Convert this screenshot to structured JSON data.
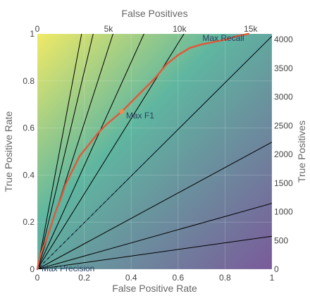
{
  "chart_data": {
    "type": "line",
    "axes": {
      "bottom_label": "False Positive Rate",
      "top_label": "False Positives",
      "left_label": "True Positive Rate",
      "right_label": "True Positives",
      "bottom_range": [
        0,
        1
      ],
      "left_range": [
        0,
        1
      ],
      "top_range": [
        0,
        16500
      ],
      "right_range": [
        0,
        4100
      ],
      "bottom_ticks": [
        "0",
        "0.2",
        "0.4",
        "0.6",
        "0.8",
        "1"
      ],
      "bottom_tick_values": [
        0,
        0.2,
        0.4,
        0.6,
        0.8,
        1
      ],
      "left_ticks": [
        "0",
        "0.2",
        "0.4",
        "0.6",
        "0.8",
        "1"
      ],
      "left_tick_values": [
        0,
        0.2,
        0.4,
        0.6,
        0.8,
        1
      ],
      "top_ticks": [
        "0",
        "5k",
        "10k",
        "15k"
      ],
      "top_tick_values": [
        0,
        5000,
        10000,
        15000
      ],
      "right_ticks": [
        "0",
        "500",
        "1000",
        "1500",
        "2000",
        "2500",
        "3000",
        "3500",
        "4000"
      ],
      "right_tick_values": [
        0,
        500,
        1000,
        1500,
        2000,
        2500,
        3000,
        3500,
        4000
      ]
    },
    "series": [
      {
        "color": "#e05a3a",
        "x": [
          0,
          0.01,
          0.02,
          0.04,
          0.06,
          0.08,
          0.1,
          0.12,
          0.15,
          0.18,
          0.22,
          0.26,
          0.3,
          0.33,
          0.36,
          0.4,
          0.45,
          0.5,
          0.55,
          0.6,
          0.65,
          0.7,
          0.75,
          0.8,
          0.85,
          0.9
        ],
        "y": [
          0,
          0.05,
          0.08,
          0.13,
          0.19,
          0.25,
          0.3,
          0.36,
          0.42,
          0.48,
          0.53,
          0.58,
          0.62,
          0.645,
          0.67,
          0.71,
          0.76,
          0.81,
          0.87,
          0.91,
          0.94,
          0.955,
          0.965,
          0.975,
          0.99,
          1.0
        ]
      }
    ],
    "annotations": [
      {
        "text": "Max F1",
        "x": 0.36,
        "y": 0.67
      },
      {
        "text": "Max Recall",
        "x": 0.9,
        "y": 1.0
      },
      {
        "text": "Max Precision",
        "x": 0.0,
        "y": 0.0
      }
    ],
    "iso_line_slopes": [
      0.14,
      0.28,
      0.54,
      0.99,
      1.6,
      2.2,
      3.1,
      4.2,
      5.3
    ],
    "diagonal_dashed": true,
    "background": "gradient-heatmap",
    "colors": {
      "curve": "#e05a3a",
      "iso_lines": "#000000",
      "diagonal": "#4aa7c0",
      "bg_top_left": "#f0ea66",
      "bg_mid": "#5fb6a0",
      "bg_bottom_right": "#7a5a9a"
    }
  }
}
